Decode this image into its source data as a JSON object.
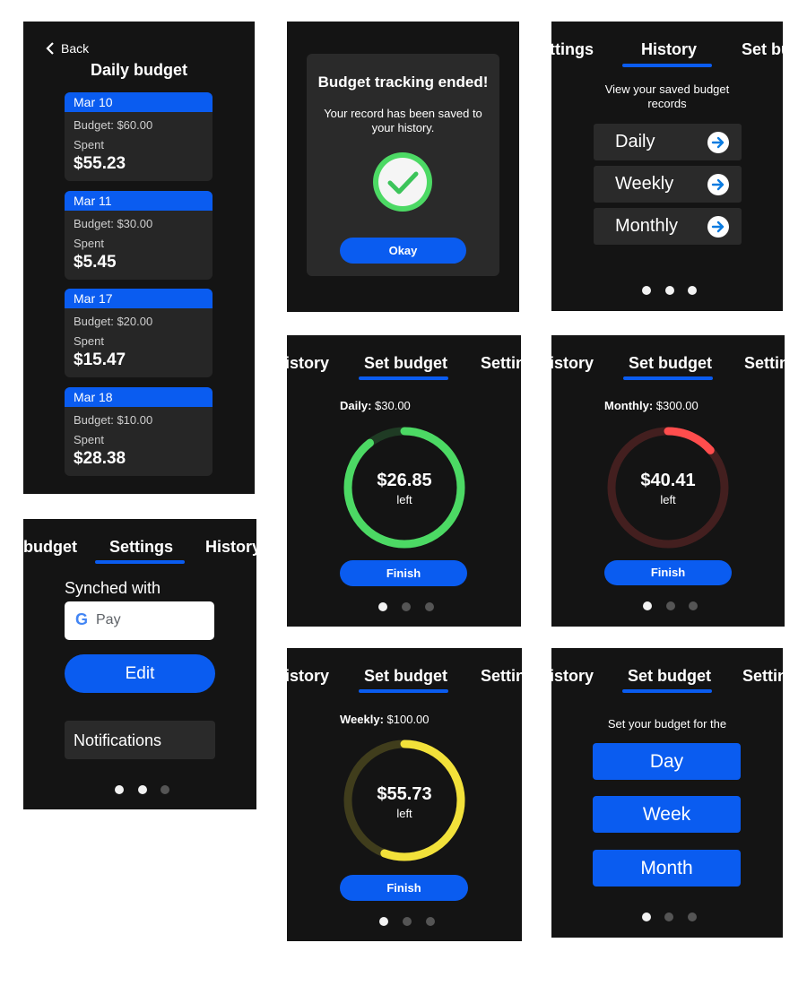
{
  "s1": {
    "back": "Back",
    "title": "Daily budget",
    "budget_prefix": "Budget: ",
    "spent_label": "Spent",
    "cards": [
      {
        "date": "Mar 10",
        "budget": "$60.00",
        "spent": "$55.23"
      },
      {
        "date": "Mar 11",
        "budget": "$30.00",
        "spent": "$5.45"
      },
      {
        "date": "Mar 17",
        "budget": "$20.00",
        "spent": "$15.47"
      },
      {
        "date": "Mar 18",
        "budget": "$10.00",
        "spent": "$28.38"
      }
    ]
  },
  "s2": {
    "title": "Budget tracking ended!",
    "message": "Your record has been saved to your history.",
    "okay": "Okay"
  },
  "s3": {
    "tabs": [
      "ttings",
      "History",
      "Set bu"
    ],
    "subtitle": "View your saved budget records",
    "rows": [
      "Daily",
      "Weekly",
      "Monthly"
    ]
  },
  "s4": {
    "tabs": [
      "istory",
      "Set budget",
      "Settin"
    ],
    "label_bold": "Daily:",
    "label_value": " $30.00",
    "amount": "$26.85",
    "left": "left",
    "finish": "Finish",
    "ring_color": "#4cd964",
    "remaining_fraction": 0.895
  },
  "s5": {
    "tabs": [
      "istory",
      "Set budget",
      "Settin"
    ],
    "label_bold": "Monthly:",
    "label_value": " $300.00",
    "amount": "$40.41",
    "left": "left",
    "finish": "Finish",
    "ring_color": "#ff4d4d",
    "remaining_fraction": 0.135
  },
  "s6": {
    "tabs": [
      "budget",
      "Settings",
      "History"
    ],
    "synched": "Synched with",
    "pay_g": "G",
    "pay_text": "Pay",
    "edit": "Edit",
    "notifications": "Notifications"
  },
  "s7": {
    "tabs": [
      "istory",
      "Set budget",
      "Settin"
    ],
    "label_bold": "Weekly:",
    "label_value": " $100.00",
    "amount": "$55.73",
    "left": "left",
    "finish": "Finish",
    "ring_color": "#f2e13a",
    "remaining_fraction": 0.557
  },
  "s8": {
    "tabs": [
      "istory",
      "Set budget",
      "Settin"
    ],
    "subtitle": "Set your budget for the",
    "buttons": [
      "Day",
      "Week",
      "Month"
    ]
  },
  "colors": {
    "accent": "#0a5cf0",
    "screen_bg": "#141414",
    "card_bg": "#262626"
  }
}
